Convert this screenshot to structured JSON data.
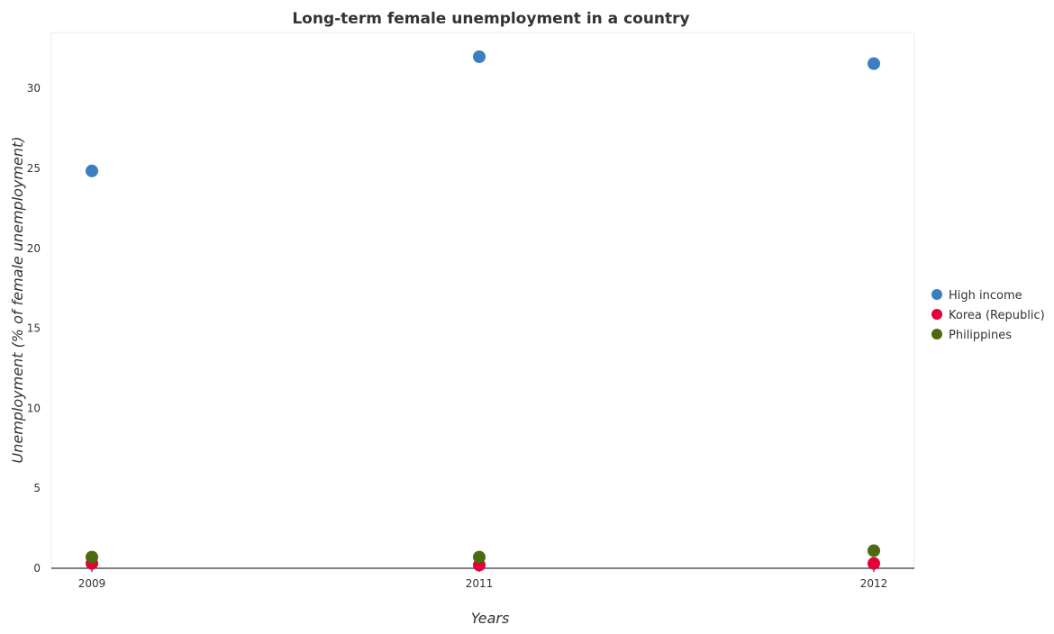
{
  "chart_data": {
    "type": "scatter",
    "title": "Long-term female unemployment in a country",
    "xlabel": "Years",
    "ylabel": "Unemployment (% of female unemployment)",
    "categories": [
      "2009",
      "2011",
      "2012"
    ],
    "y_ticks": [
      "0",
      "5",
      "10",
      "15",
      "20",
      "25",
      "30"
    ],
    "ylim": [
      0,
      33.5
    ],
    "grid": false,
    "legend_position": "right",
    "series": [
      {
        "name": "High income",
        "color": "#3a7fbf",
        "values": [
          24.84,
          31.98,
          31.55
        ]
      },
      {
        "name": "Korea (Republic)",
        "color": "#e4003a",
        "values": [
          0.3,
          0.2,
          0.3
        ]
      },
      {
        "name": "Philippines",
        "color": "#4d6a0e",
        "values": [
          0.7,
          0.7,
          1.1
        ]
      }
    ]
  }
}
